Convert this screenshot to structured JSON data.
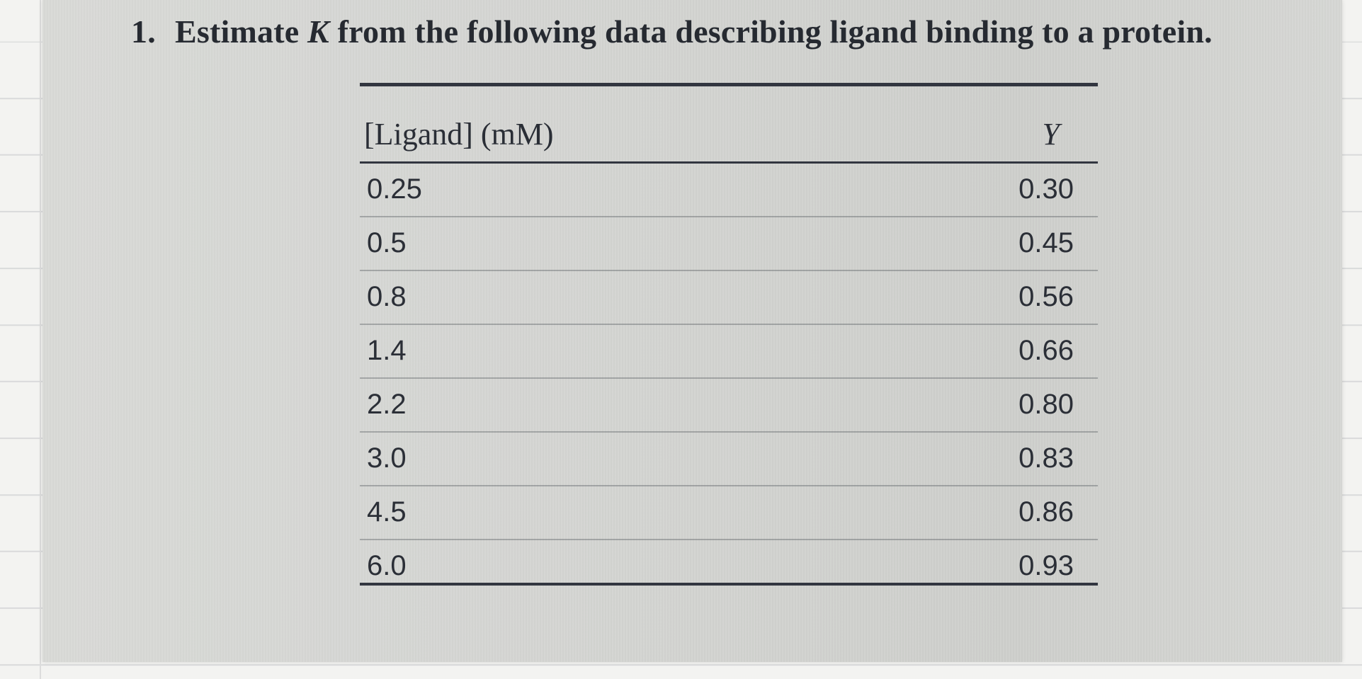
{
  "question": {
    "number": "1.",
    "text_before": "Estimate ",
    "variable": "K",
    "text_after": " from the following data describing ligand binding to a protein."
  },
  "table": {
    "headers": {
      "left": "[Ligand] (mM)",
      "right": "Y"
    },
    "rows": [
      {
        "ligand": "0.25",
        "y": "0.30"
      },
      {
        "ligand": "0.5",
        "y": "0.45"
      },
      {
        "ligand": "0.8",
        "y": "0.56"
      },
      {
        "ligand": "1.4",
        "y": "0.66"
      },
      {
        "ligand": "2.2",
        "y": "0.80"
      },
      {
        "ligand": "3.0",
        "y": "0.83"
      },
      {
        "ligand": "4.5",
        "y": "0.86"
      },
      {
        "ligand": "6.0",
        "y": "0.93"
      }
    ]
  }
}
